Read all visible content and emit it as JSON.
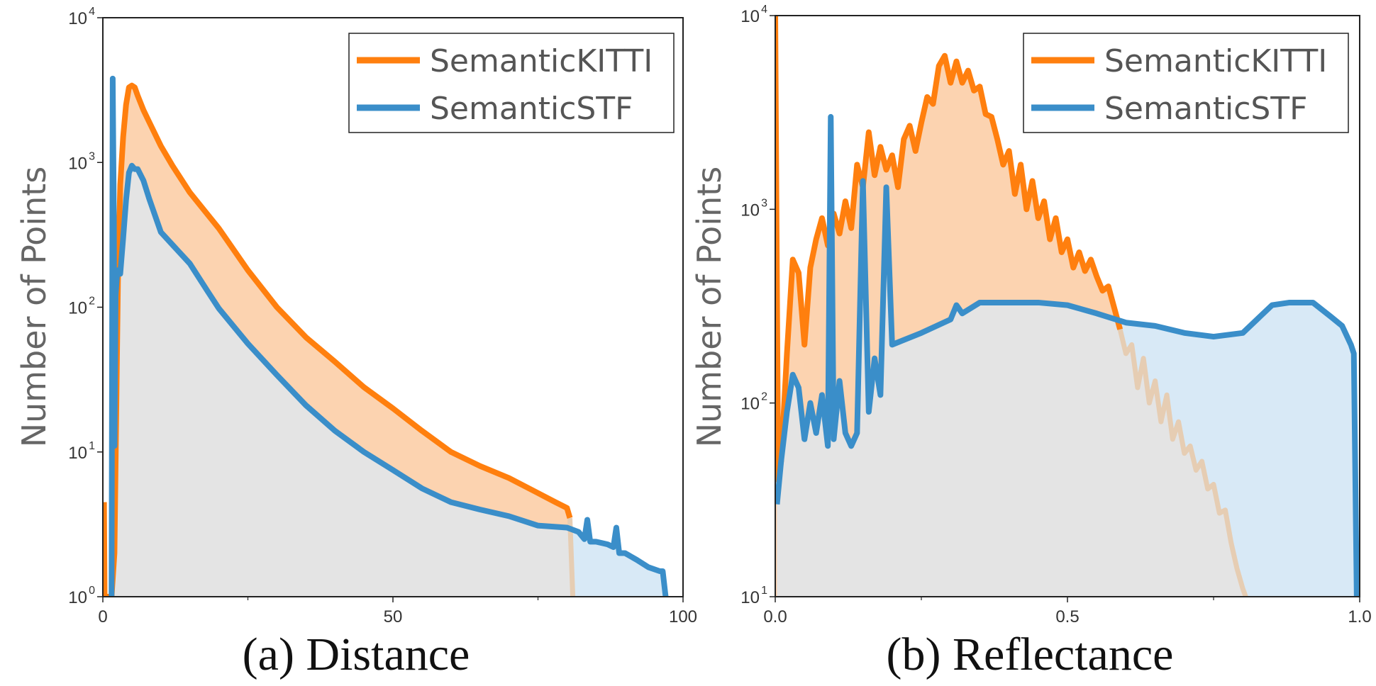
{
  "colors": {
    "semantickitti": "#ff7f0e",
    "semanticstf": "#3a8ec9",
    "kitti_fill": "#fcd3b0",
    "stf_fill": "#d6e8f5",
    "overlap_fill": "#e4e4e4",
    "kitti_faded": "#e6cdb3"
  },
  "chart_data": [
    {
      "type": "area",
      "caption": "(a) Distance",
      "xlabel": "",
      "ylabel": "Number of Points",
      "xlim": [
        0,
        100
      ],
      "xticks": [
        "0",
        "50",
        "100"
      ],
      "ylim": [
        1,
        10000
      ],
      "yscale": "log",
      "yticks": [
        {
          "base": "10",
          "exp": "0"
        },
        {
          "base": "10",
          "exp": "1"
        },
        {
          "base": "10",
          "exp": "2"
        },
        {
          "base": "10",
          "exp": "3"
        },
        {
          "base": "10",
          "exp": "4"
        }
      ],
      "legend": {
        "position": "top-right",
        "entries": [
          "SemanticKITTI",
          "SemanticSTF"
        ]
      },
      "series": [
        {
          "name": "SemanticKITTI",
          "x": [
            0.2,
            0.3,
            1.5,
            2.0,
            2.6,
            3.0,
            3.5,
            4.0,
            4.5,
            5.0,
            5.5,
            6.0,
            7.0,
            8,
            10,
            12,
            15,
            18,
            20,
            25,
            30,
            35,
            40,
            45,
            50,
            55,
            60,
            65,
            70,
            75,
            78,
            80,
            80.5,
            81
          ],
          "y": [
            4.5,
            1,
            1,
            2,
            150,
            700,
            1500,
            2500,
            3300,
            3400,
            3300,
            2900,
            2300,
            1900,
            1300,
            950,
            620,
            440,
            350,
            180,
            100,
            62,
            42,
            28,
            20,
            14,
            10,
            8,
            6.6,
            5.2,
            4.5,
            4.1,
            3.5,
            1
          ]
        },
        {
          "name": "SemanticSTF",
          "x": [
            1.5,
            1.7,
            1.9,
            2.0,
            2.2,
            2.5,
            3.0,
            3.5,
            4.0,
            4.5,
            5.0,
            5.5,
            6.0,
            7,
            8,
            10,
            12,
            15,
            18,
            20,
            25,
            30,
            35,
            40,
            45,
            50,
            55,
            60,
            65,
            70,
            75,
            80,
            82,
            83,
            83.5,
            84,
            85,
            87,
            88,
            88.5,
            89,
            90,
            92,
            94,
            96,
            96.5,
            97
          ],
          "y": [
            1,
            3800,
            400,
            11,
            120,
            180,
            170,
            300,
            550,
            850,
            950,
            900,
            900,
            750,
            560,
            330,
            270,
            200,
            130,
            98,
            56,
            34,
            21,
            14,
            10,
            7.5,
            5.6,
            4.5,
            4.0,
            3.6,
            3.1,
            3.0,
            2.8,
            2.5,
            3.4,
            2.4,
            2.4,
            2.3,
            2.2,
            3.0,
            2.0,
            2.0,
            1.8,
            1.6,
            1.5,
            1.5,
            1
          ]
        }
      ]
    },
    {
      "type": "area",
      "caption": "(b) Reflectance",
      "xlabel": "",
      "ylabel": "Number of Points",
      "xlim": [
        0,
        1
      ],
      "xticks": [
        "0.0",
        "0.5",
        "1.0"
      ],
      "ylim": [
        10,
        10000
      ],
      "yscale": "log",
      "yticks": [
        {
          "base": "10",
          "exp": "1"
        },
        {
          "base": "10",
          "exp": "2"
        },
        {
          "base": "10",
          "exp": "3"
        },
        {
          "base": "10",
          "exp": "4"
        }
      ],
      "legend": {
        "position": "top-right",
        "entries": [
          "SemanticKITTI",
          "SemanticSTF"
        ]
      },
      "series": [
        {
          "name": "SemanticKITTI",
          "x": [
            0.0,
            0.005,
            0.01,
            0.02,
            0.03,
            0.04,
            0.05,
            0.06,
            0.07,
            0.08,
            0.09,
            0.1,
            0.11,
            0.12,
            0.13,
            0.14,
            0.15,
            0.16,
            0.17,
            0.18,
            0.19,
            0.2,
            0.21,
            0.22,
            0.23,
            0.24,
            0.25,
            0.26,
            0.27,
            0.28,
            0.29,
            0.3,
            0.31,
            0.32,
            0.33,
            0.34,
            0.35,
            0.36,
            0.37,
            0.38,
            0.39,
            0.4,
            0.41,
            0.42,
            0.43,
            0.44,
            0.45,
            0.46,
            0.47,
            0.48,
            0.49,
            0.5,
            0.51,
            0.52,
            0.53,
            0.54,
            0.55,
            0.56,
            0.57,
            0.58,
            0.59,
            0.6,
            0.61,
            0.62,
            0.63,
            0.64,
            0.65,
            0.66,
            0.67,
            0.68,
            0.69,
            0.7,
            0.71,
            0.72,
            0.73,
            0.74,
            0.75,
            0.76,
            0.77,
            0.78,
            0.79,
            0.8,
            0.805
          ],
          "y": [
            10000,
            40,
            50,
            180,
            550,
            470,
            200,
            500,
            700,
            900,
            650,
            950,
            750,
            1100,
            800,
            1700,
            1300,
            2500,
            1500,
            2100,
            1600,
            1900,
            1300,
            2300,
            2700,
            2000,
            2800,
            3800,
            3500,
            5500,
            6200,
            4500,
            5800,
            4500,
            5200,
            4100,
            4300,
            3100,
            3000,
            2300,
            1700,
            2000,
            1200,
            1700,
            1000,
            1400,
            900,
            1100,
            700,
            900,
            600,
            700,
            500,
            600,
            480,
            550,
            450,
            380,
            400,
            310,
            240,
            180,
            200,
            120,
            170,
            100,
            130,
            80,
            110,
            65,
            80,
            55,
            60,
            45,
            50,
            36,
            38,
            27,
            28,
            19,
            14,
            11,
            10
          ]
        },
        {
          "name": "SemanticSTF",
          "x": [
            0.003,
            0.01,
            0.02,
            0.03,
            0.04,
            0.05,
            0.06,
            0.07,
            0.08,
            0.09,
            0.095,
            0.1,
            0.11,
            0.12,
            0.13,
            0.14,
            0.15,
            0.16,
            0.17,
            0.18,
            0.19,
            0.2,
            0.25,
            0.3,
            0.31,
            0.32,
            0.35,
            0.4,
            0.45,
            0.5,
            0.55,
            0.6,
            0.65,
            0.7,
            0.75,
            0.8,
            0.85,
            0.88,
            0.9,
            0.92,
            0.95,
            0.97,
            0.985,
            0.99,
            0.995
          ],
          "y": [
            30,
            50,
            90,
            140,
            120,
            65,
            100,
            70,
            110,
            60,
            3000,
            65,
            130,
            70,
            60,
            70,
            1400,
            90,
            170,
            110,
            1300,
            200,
            230,
            270,
            320,
            290,
            330,
            330,
            330,
            320,
            290,
            260,
            250,
            230,
            220,
            230,
            320,
            330,
            330,
            330,
            280,
            250,
            200,
            180,
            10
          ]
        }
      ]
    }
  ]
}
